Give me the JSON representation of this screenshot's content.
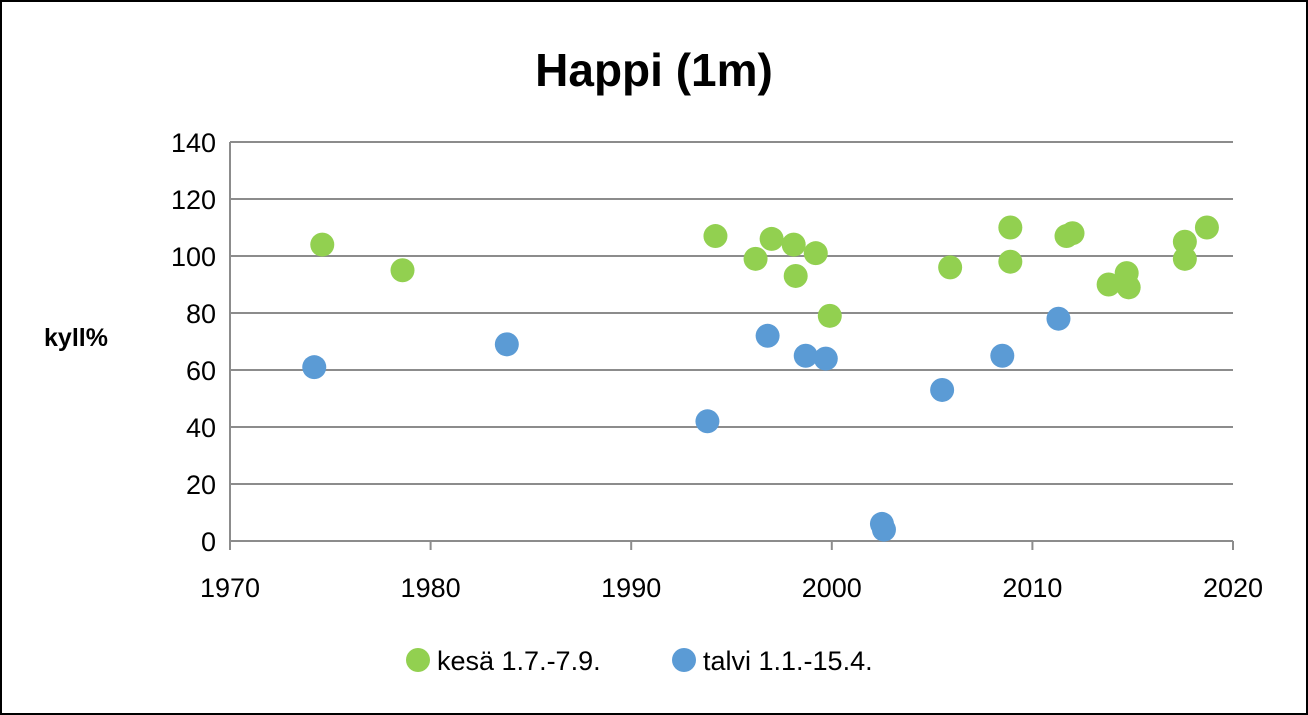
{
  "chart_data": {
    "type": "scatter",
    "title": "Happi (1m)",
    "xlabel": "",
    "ylabel": "kyll%",
    "xlim": [
      1970,
      2020
    ],
    "ylim": [
      0,
      140
    ],
    "xticks": [
      1970,
      1980,
      1990,
      2000,
      2010,
      2020
    ],
    "yticks": [
      0,
      20,
      40,
      60,
      80,
      100,
      120,
      140
    ],
    "grid": "horizontal",
    "legend_position": "bottom",
    "series": [
      {
        "name": "kesä 1.7.-7.9.",
        "color": "#92d050",
        "points": [
          [
            1974.6,
            104
          ],
          [
            1978.6,
            95
          ],
          [
            1994.2,
            107
          ],
          [
            1996.2,
            99
          ],
          [
            1997.0,
            106
          ],
          [
            1998.1,
            104
          ],
          [
            1998.2,
            93
          ],
          [
            1999.2,
            101
          ],
          [
            1999.9,
            79
          ],
          [
            2005.9,
            96
          ],
          [
            2008.9,
            110
          ],
          [
            2008.9,
            98
          ],
          [
            2011.7,
            107
          ],
          [
            2012.0,
            108
          ],
          [
            2013.8,
            90
          ],
          [
            2014.7,
            94
          ],
          [
            2014.7,
            90
          ],
          [
            2014.8,
            89
          ],
          [
            2017.6,
            105
          ],
          [
            2017.6,
            99
          ],
          [
            2018.7,
            110
          ]
        ]
      },
      {
        "name": "talvi 1.1.-15.4.",
        "color": "#5b9bd5",
        "points": [
          [
            1974.2,
            61
          ],
          [
            1983.8,
            69
          ],
          [
            1993.8,
            42
          ],
          [
            1996.8,
            72
          ],
          [
            1998.7,
            65
          ],
          [
            1999.7,
            64
          ],
          [
            2002.5,
            6
          ],
          [
            2002.6,
            4
          ],
          [
            2005.5,
            53
          ],
          [
            2008.5,
            65
          ],
          [
            2011.3,
            78
          ]
        ]
      }
    ]
  }
}
